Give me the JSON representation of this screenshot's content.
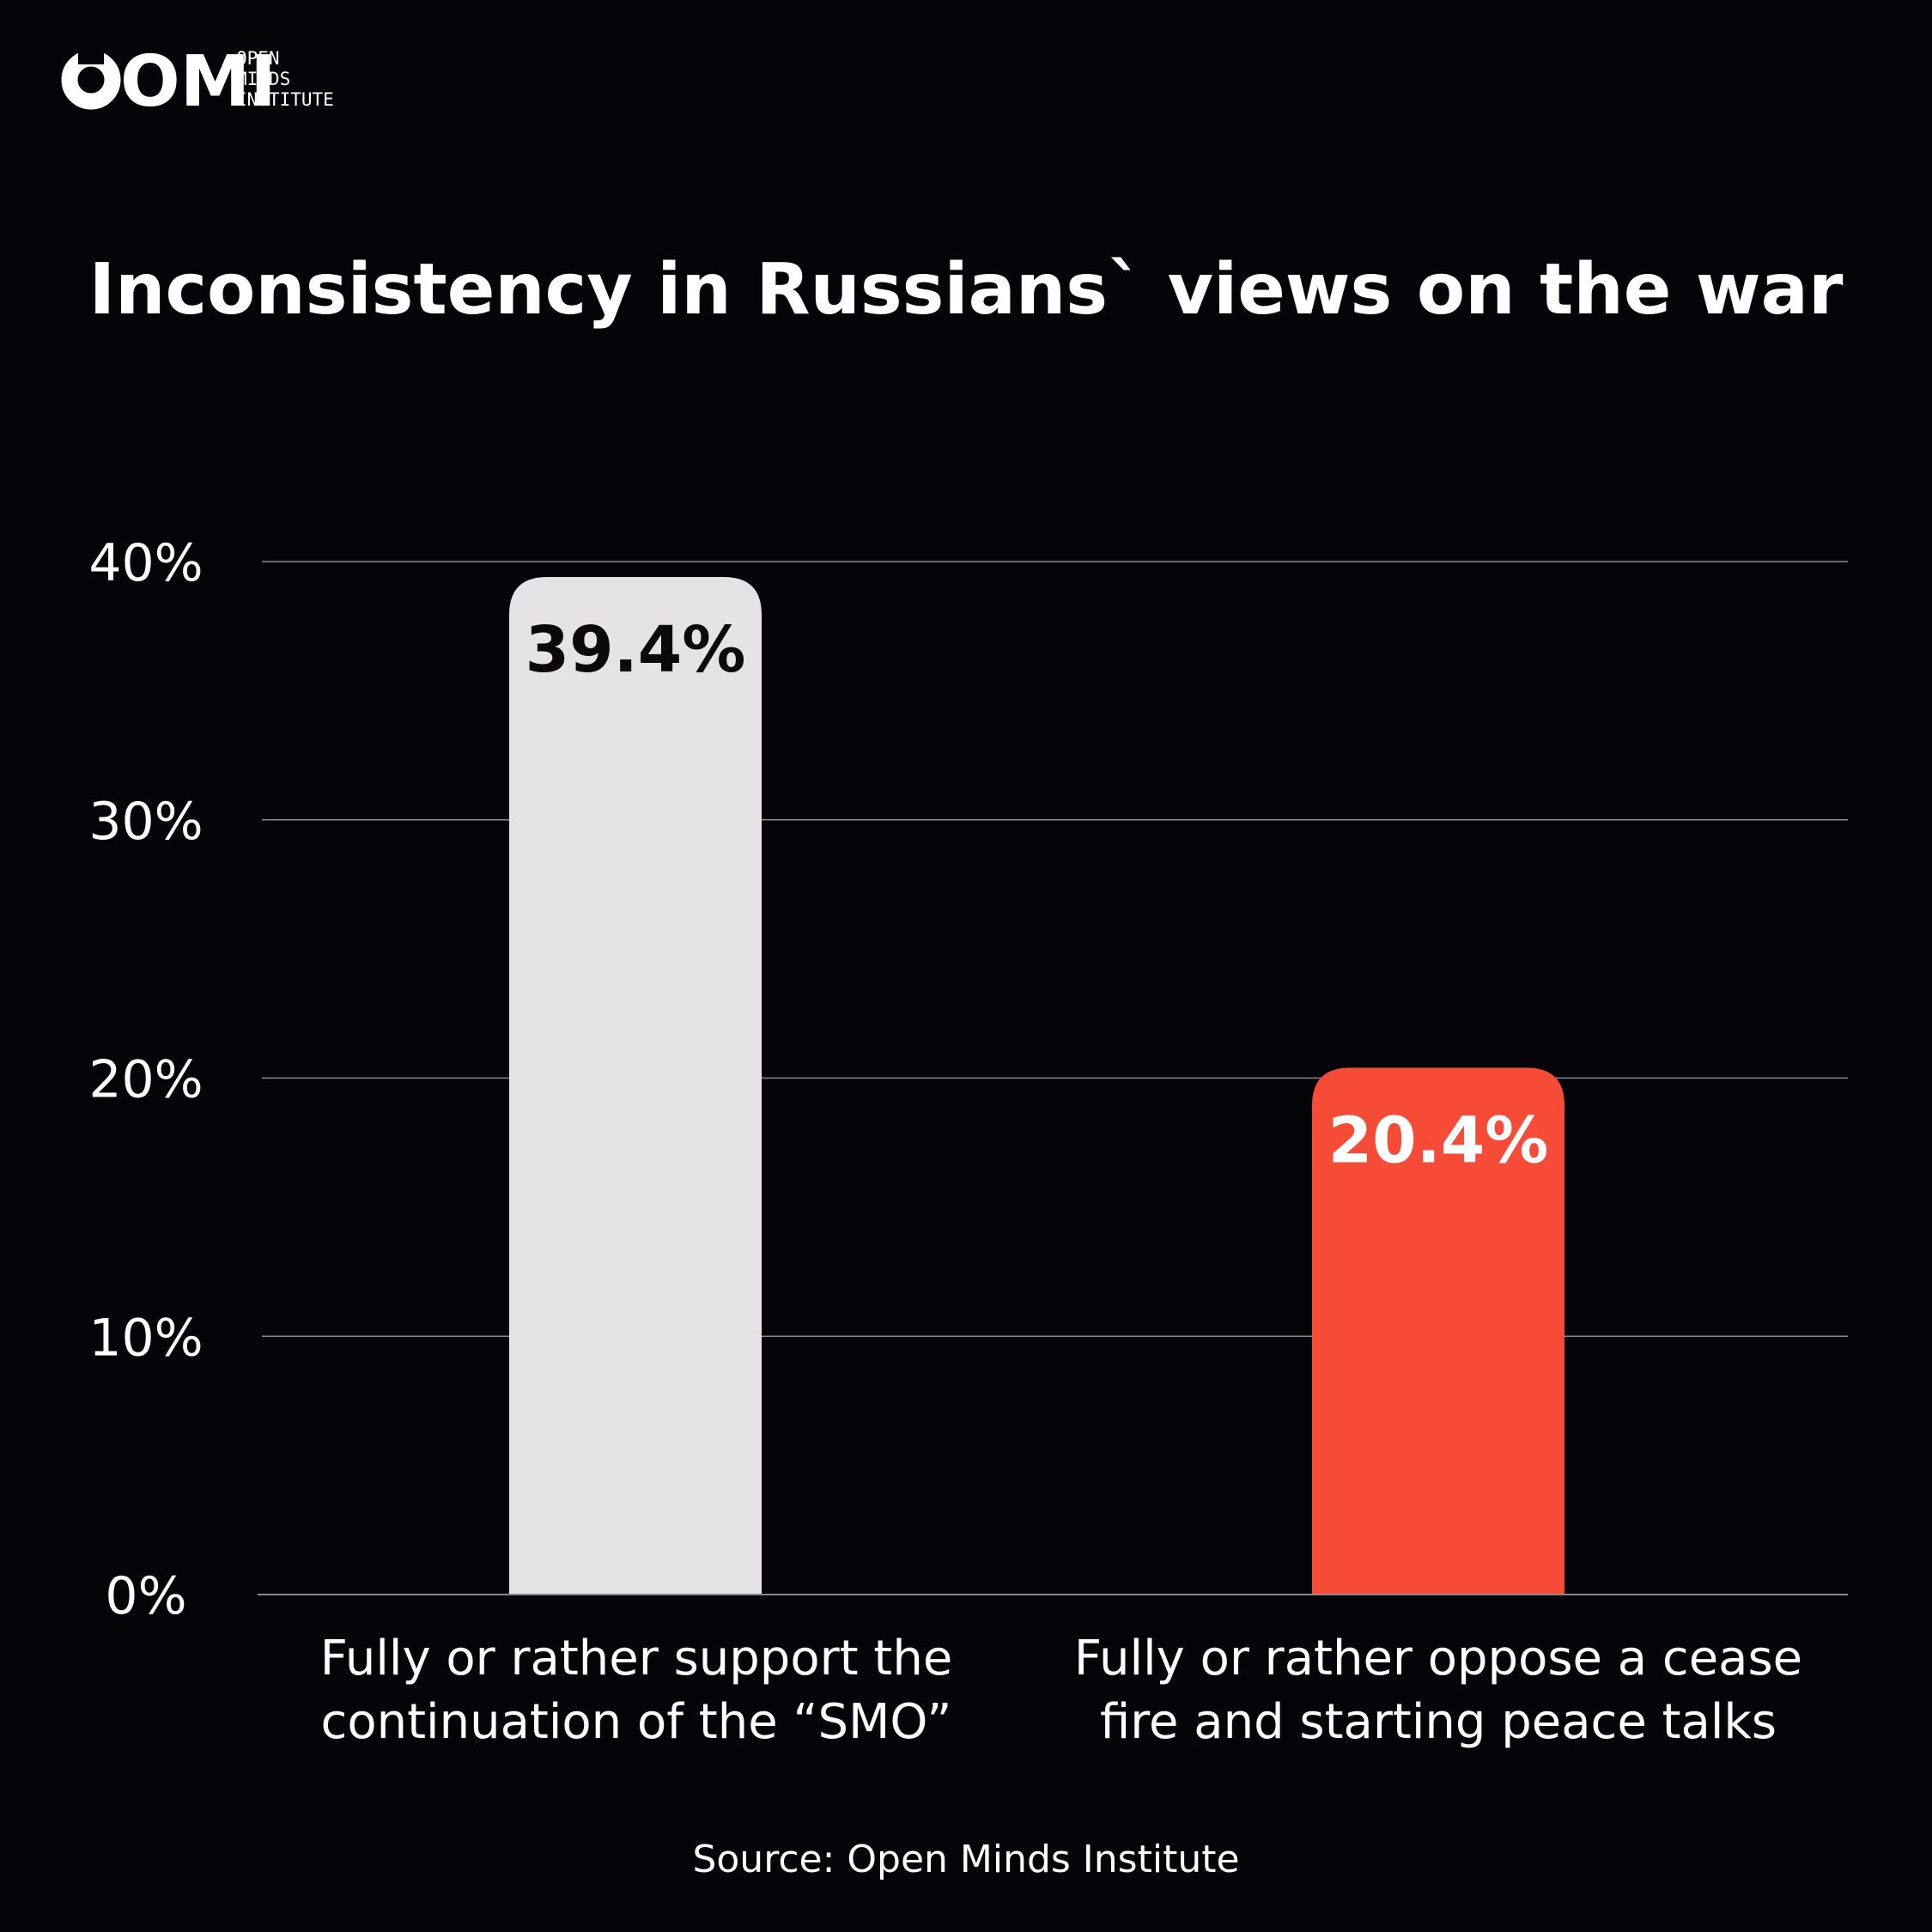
{
  "brand": {
    "logo_text": "OMI",
    "name_lines": [
      "OPEN",
      "MINDS",
      "INSTITUTE"
    ]
  },
  "chart_data": {
    "type": "bar",
    "title": "Inconsistency in Russians` views on the war",
    "categories": [
      [
        "Fully or rather support the",
        "continuation of the “SMO”"
      ],
      [
        "Fully or rather oppose a cease",
        "fire and starting peace talks"
      ]
    ],
    "values": [
      39.4,
      20.4
    ],
    "value_labels": [
      "39.4%",
      "20.4%"
    ],
    "bar_colors": [
      "#e5e3e6",
      "#f64b37"
    ],
    "label_colors": [
      "#0a090c",
      "#ffffff"
    ],
    "yticks": [
      0,
      10,
      20,
      30,
      40
    ],
    "ytick_labels": [
      "0%",
      "10%",
      "20%",
      "30%",
      "40%"
    ],
    "ylim": [
      0,
      40
    ],
    "xlabel": "",
    "ylabel": "",
    "grid": true,
    "source": "Source: Open Minds Institute"
  },
  "colors": {
    "background": "#050408",
    "grid": "#8a8890",
    "text": "#ffffff"
  }
}
